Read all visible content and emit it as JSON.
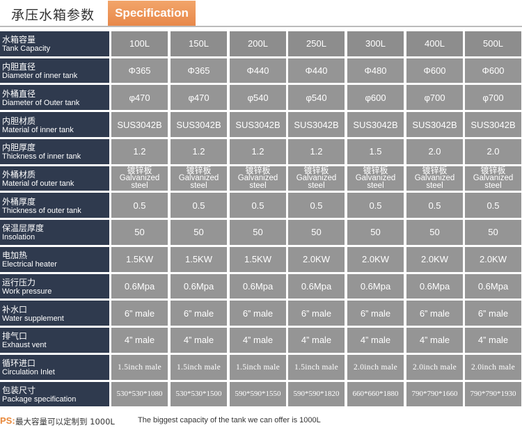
{
  "header": {
    "title_cn": "承压水箱参数",
    "tab_label": "Specification"
  },
  "table": {
    "rows": [
      {
        "cn": "水箱容量",
        "en": "Tank Capacity",
        "style": "normal",
        "values": [
          "100L",
          "150L",
          "200L",
          "250L",
          "300L",
          "400L",
          "500L"
        ]
      },
      {
        "cn": "内胆直径",
        "en": "Diameter of inner tank",
        "style": "normal",
        "values": [
          "Φ365",
          "Φ365",
          "Φ440",
          "Φ440",
          "Φ480",
          "Φ600",
          "Φ600"
        ]
      },
      {
        "cn": "外桶直径",
        "en": "Diameter of Outer tank",
        "style": "normal",
        "values": [
          "φ470",
          "φ470",
          "φ540",
          "φ540",
          "φ600",
          "φ700",
          "φ700"
        ]
      },
      {
        "cn": "内胆材质",
        "en": "Material of inner tank",
        "style": "normal",
        "values": [
          "SUS3042B",
          "SUS3042B",
          "SUS3042B",
          "SUS3042B",
          "SUS3042B",
          "SUS3042B",
          "SUS3042B"
        ]
      },
      {
        "cn": "内胆厚度",
        "en": "Thickness of inner tank",
        "style": "normal",
        "values": [
          "1.2",
          "1.2",
          "1.2",
          "1.2",
          "1.5",
          "2.0",
          "2.0"
        ]
      },
      {
        "cn": "外桶材质",
        "en": "Material of outer tank",
        "style": "two",
        "values": [
          [
            "镀锌板",
            "Galvanized",
            "steel"
          ],
          [
            "镀锌板",
            "Galvanized",
            "steel"
          ],
          [
            "镀锌板",
            "Galvanized",
            "steel"
          ],
          [
            "镀锌板",
            "Galvanized",
            "steel"
          ],
          [
            "镀锌板",
            "Galvanized",
            "steel"
          ],
          [
            "镀锌板",
            "Galvanized",
            "steel"
          ],
          [
            "镀锌板",
            "Galvanized",
            "steel"
          ]
        ]
      },
      {
        "cn": "外桶厚度",
        "en": "Thickness of outer tank",
        "style": "normal",
        "values": [
          "0.5",
          "0.5",
          "0.5",
          "0.5",
          "0.5",
          "0.5",
          "0.5"
        ]
      },
      {
        "cn": "保温层厚度",
        "en": "Insolation",
        "style": "normal",
        "values": [
          "50",
          "50",
          "50",
          "50",
          "50",
          "50",
          "50"
        ]
      },
      {
        "cn": "电加热",
        "en": "Electrical heater",
        "style": "normal",
        "values": [
          "1.5KW",
          "1.5KW",
          "1.5KW",
          "2.0KW",
          "2.0KW",
          "2.0KW",
          "2.0KW"
        ]
      },
      {
        "cn": "运行压力",
        "en": "Work pressure",
        "style": "normal",
        "values": [
          "0.6Mpa",
          "0.6Mpa",
          "0.6Mpa",
          "0.6Mpa",
          "0.6Mpa",
          "0.6Mpa",
          "0.6Mpa"
        ]
      },
      {
        "cn": "补水口",
        "en": "Water supplement",
        "style": "normal",
        "values": [
          "6” male",
          "6” male",
          "6” male",
          "6” male",
          "6” male",
          "6” male",
          "6” male"
        ]
      },
      {
        "cn": "排气口",
        "en": "Exhaust vent",
        "style": "normal",
        "values": [
          "4” male",
          "4” male",
          "4” male",
          "4” male",
          "4” male",
          "4” male",
          "4” male"
        ]
      },
      {
        "cn": "循环进口",
        "en": "Circulation Inlet",
        "style": "mono",
        "values": [
          "1.5inch male",
          "1.5inch male",
          "1.5inch male",
          "1.5inch male",
          "2.0inch male",
          "2.0inch male",
          "2.0inch male"
        ]
      },
      {
        "cn": "包装尺寸",
        "en": "Package specification",
        "style": "small",
        "values": [
          "530*530*1080",
          "530*530*1500",
          "590*590*1550",
          "590*590*1820",
          "660*660*1880",
          "790*790*1660",
          "790*790*1930"
        ]
      }
    ]
  },
  "footer": {
    "ps_label": "PS:",
    "note_cn": "最大容量可以定制到 1000L",
    "note_en": "The biggest capacity of the tank we can offer is 1000L"
  },
  "colors": {
    "label_bg": "#2f3a4e",
    "cell_bg": "#959595",
    "tab_bg": "#e8884a",
    "ps_color": "#e8883a"
  }
}
